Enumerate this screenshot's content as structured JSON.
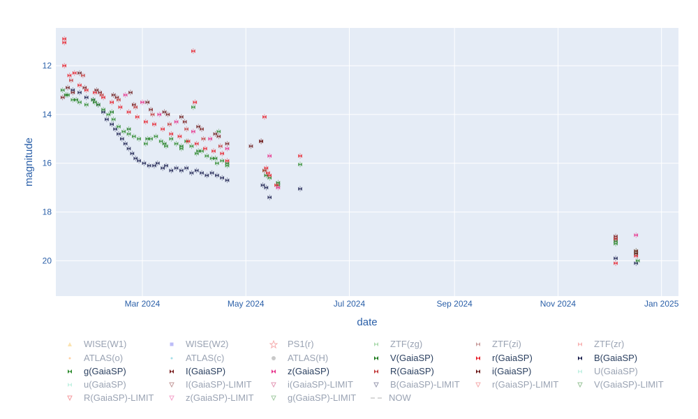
{
  "chart_data": {
    "type": "scatter",
    "xlabel": "date",
    "ylabel": "magnitude",
    "y_reversed": true,
    "xlim": [
      "2024-01-10",
      "2025-01-11"
    ],
    "ylim": [
      21.45,
      10.45
    ],
    "x_ticks": [
      {
        "date": "2024-03-01",
        "label": "Mar 2024"
      },
      {
        "date": "2024-05-01",
        "label": "May 2024"
      },
      {
        "date": "2024-07-01",
        "label": "Jul 2024"
      },
      {
        "date": "2024-09-01",
        "label": "Sep 2024"
      },
      {
        "date": "2024-11-01",
        "label": "Nov 2024"
      },
      {
        "date": "2025-01-01",
        "label": "Jan 2025"
      }
    ],
    "y_ticks": [
      12,
      14,
      16,
      18,
      20
    ],
    "grid": true,
    "background": "#e5ecf6",
    "legend_position": "bottom",
    "legend": [
      {
        "name": "WISE(W1)",
        "color": "#f6c04f",
        "symbol": "triangle-up",
        "faded": true
      },
      {
        "name": "WISE(W2)",
        "color": "#6a6af0",
        "symbol": "square",
        "faded": true
      },
      {
        "name": "PS1(r)",
        "color": "#e8474b",
        "symbol": "star-open",
        "faded": true
      },
      {
        "name": "ZTF(zg)",
        "color": "#4caf50",
        "symbol": "x-thin",
        "faded": true
      },
      {
        "name": "ZTF(zi)",
        "color": "#8b2e2e",
        "symbol": "x-thin",
        "faded": true
      },
      {
        "name": "ZTF(zr)",
        "color": "#f05a5a",
        "symbol": "x-thin",
        "faded": true
      },
      {
        "name": "ATLAS(o)",
        "color": "#ff9933",
        "symbol": "dot",
        "faded": true
      },
      {
        "name": "ATLAS(c)",
        "color": "#33b5cc",
        "symbol": "dot",
        "faded": true
      },
      {
        "name": "ATLAS(H)",
        "color": "#888888",
        "symbol": "circle",
        "faded": true
      },
      {
        "name": "V(GaiaSP)",
        "color": "#1b7a1b",
        "symbol": "bowtie",
        "faded": false
      },
      {
        "name": "r(GaiaSP)",
        "color": "#e8202a",
        "symbol": "bowtie",
        "faded": false
      },
      {
        "name": "B(GaiaSP)",
        "color": "#1a1f4d",
        "symbol": "bowtie",
        "faded": false
      },
      {
        "name": "g(GaiaSP)",
        "color": "#2e8b2e",
        "symbol": "bowtie",
        "faded": false
      },
      {
        "name": "I(GaiaSP)",
        "color": "#7a1f1f",
        "symbol": "bowtie",
        "faded": false
      },
      {
        "name": "z(GaiaSP)",
        "color": "#e6308a",
        "symbol": "bowtie",
        "faded": false
      },
      {
        "name": "R(GaiaSP)",
        "color": "#c23a3a",
        "symbol": "bowtie",
        "faded": false
      },
      {
        "name": "i(GaiaSP)",
        "color": "#6b1a1a",
        "symbol": "bowtie",
        "faded": false
      },
      {
        "name": "U(GaiaSP)",
        "color": "#7de0c0",
        "symbol": "bowtie",
        "faded": true
      },
      {
        "name": "u(GaiaSP)",
        "color": "#7de0c0",
        "symbol": "bowtie",
        "faded": true
      },
      {
        "name": "I(GaiaSP)-LIMIT",
        "color": "#7a1f1f",
        "symbol": "triangle-down-open",
        "faded": true
      },
      {
        "name": "i(GaiaSP)-LIMIT",
        "color": "#c2185b",
        "symbol": "triangle-down-open",
        "faded": true
      },
      {
        "name": "B(GaiaSP)-LIMIT",
        "color": "#1a1f4d",
        "symbol": "triangle-down-open",
        "faded": true
      },
      {
        "name": "r(GaiaSP)-LIMIT",
        "color": "#e8474b",
        "symbol": "triangle-down-open",
        "faded": true
      },
      {
        "name": "V(GaiaSP)-LIMIT",
        "color": "#1b7a1b",
        "symbol": "triangle-down-open",
        "faded": true
      },
      {
        "name": "R(GaiaSP)-LIMIT",
        "color": "#e8202a",
        "symbol": "triangle-down-open",
        "faded": true
      },
      {
        "name": "z(GaiaSP)-LIMIT",
        "color": "#e6308a",
        "symbol": "triangle-down-open",
        "faded": true
      },
      {
        "name": "g(GaiaSP)-LIMIT",
        "color": "#2e8b2e",
        "symbol": "triangle-down-open",
        "faded": true
      },
      {
        "name": "NOW",
        "color": "#555555",
        "symbol": "dash-line",
        "faded": true
      }
    ],
    "series": [
      {
        "name": "B(GaiaSP)",
        "color": "#1a1f4d",
        "points": [
          [
            "2024-01-20",
            13.0
          ],
          [
            "2024-01-24",
            13.1
          ],
          [
            "2024-01-28",
            13.3
          ],
          [
            "2024-02-01",
            13.4
          ],
          [
            "2024-02-04",
            13.6
          ],
          [
            "2024-02-07",
            13.9
          ],
          [
            "2024-02-09",
            14.2
          ],
          [
            "2024-02-12",
            14.4
          ],
          [
            "2024-02-14",
            14.6
          ],
          [
            "2024-02-16",
            14.8
          ],
          [
            "2024-02-18",
            15.0
          ],
          [
            "2024-02-20",
            15.2
          ],
          [
            "2024-02-22",
            15.4
          ],
          [
            "2024-02-24",
            15.6
          ],
          [
            "2024-02-26",
            15.8
          ],
          [
            "2024-02-28",
            15.9
          ],
          [
            "2024-03-02",
            16.0
          ],
          [
            "2024-03-05",
            16.1
          ],
          [
            "2024-03-08",
            16.1
          ],
          [
            "2024-03-10",
            16.0
          ],
          [
            "2024-03-13",
            16.2
          ],
          [
            "2024-03-15",
            16.1
          ],
          [
            "2024-03-18",
            16.3
          ],
          [
            "2024-03-21",
            16.2
          ],
          [
            "2024-03-24",
            16.3
          ],
          [
            "2024-03-27",
            16.2
          ],
          [
            "2024-03-30",
            16.4
          ],
          [
            "2024-04-02",
            16.3
          ],
          [
            "2024-04-05",
            16.4
          ],
          [
            "2024-04-08",
            16.5
          ],
          [
            "2024-04-11",
            16.4
          ],
          [
            "2024-04-14",
            16.5
          ],
          [
            "2024-04-17",
            16.6
          ],
          [
            "2024-04-20",
            16.7
          ],
          [
            "2024-05-11",
            16.9
          ],
          [
            "2024-05-13",
            17.0
          ],
          [
            "2024-05-15",
            17.4
          ],
          [
            "2024-06-02",
            17.05
          ],
          [
            "2024-12-05",
            19.9
          ],
          [
            "2024-12-17",
            20.1
          ]
        ]
      },
      {
        "name": "g(GaiaSP)",
        "color": "#2e8b2e",
        "points": [
          [
            "2024-01-14",
            13.0
          ],
          [
            "2024-01-17",
            13.2
          ],
          [
            "2024-01-20",
            13.4
          ],
          [
            "2024-01-24",
            13.5
          ],
          [
            "2024-01-28",
            13.6
          ],
          [
            "2024-02-01",
            13.4
          ],
          [
            "2024-02-04",
            13.6
          ],
          [
            "2024-02-07",
            13.8
          ],
          [
            "2024-02-10",
            14.0
          ],
          [
            "2024-02-13",
            14.2
          ],
          [
            "2024-02-16",
            14.5
          ],
          [
            "2024-02-19",
            14.7
          ],
          [
            "2024-02-22",
            14.8
          ],
          [
            "2024-02-25",
            14.9
          ],
          [
            "2024-02-28",
            15.0
          ],
          [
            "2024-03-03",
            15.2
          ],
          [
            "2024-03-06",
            15.0
          ],
          [
            "2024-03-09",
            14.9
          ],
          [
            "2024-03-12",
            15.1
          ],
          [
            "2024-03-15",
            15.3
          ],
          [
            "2024-03-18",
            15.0
          ],
          [
            "2024-03-21",
            15.2
          ],
          [
            "2024-03-24",
            15.4
          ],
          [
            "2024-03-27",
            15.1
          ],
          [
            "2024-03-30",
            15.3
          ],
          [
            "2024-04-02",
            15.6
          ],
          [
            "2024-04-05",
            15.5
          ],
          [
            "2024-04-08",
            15.7
          ],
          [
            "2024-04-11",
            15.8
          ],
          [
            "2024-04-14",
            16.0
          ],
          [
            "2024-04-17",
            15.9
          ],
          [
            "2024-04-20",
            16.1
          ],
          [
            "2024-03-31",
            13.7
          ],
          [
            "2024-04-15",
            14.7
          ],
          [
            "2024-05-12",
            16.3
          ],
          [
            "2024-05-15",
            16.6
          ],
          [
            "2024-05-20",
            16.9
          ],
          [
            "2024-06-02",
            16.05
          ],
          [
            "2024-12-05",
            19.3
          ],
          [
            "2024-12-17",
            19.6
          ],
          [
            "2024-12-18",
            20.0
          ]
        ]
      },
      {
        "name": "V(GaiaSP)",
        "color": "#1b7a1b",
        "points": [
          [
            "2024-01-16",
            13.2
          ],
          [
            "2024-01-22",
            13.4
          ],
          [
            "2024-02-02",
            13.5
          ],
          [
            "2024-02-12",
            13.9
          ],
          [
            "2024-02-22",
            14.6
          ],
          [
            "2024-03-04",
            15.0
          ],
          [
            "2024-03-14",
            15.2
          ],
          [
            "2024-03-24",
            15.3
          ],
          [
            "2024-04-03",
            15.5
          ],
          [
            "2024-04-13",
            15.8
          ],
          [
            "2024-04-20",
            16.0
          ],
          [
            "2024-05-13",
            16.5
          ],
          [
            "2024-05-20",
            16.8
          ],
          [
            "2024-12-05",
            19.2
          ],
          [
            "2024-12-17",
            19.7
          ]
        ]
      },
      {
        "name": "r(GaiaSP)",
        "color": "#e8202a",
        "points": [
          [
            "2024-01-15",
            10.9
          ],
          [
            "2024-01-15",
            11.05
          ],
          [
            "2024-01-15",
            12.0
          ],
          [
            "2024-01-18",
            12.4
          ],
          [
            "2024-01-21",
            12.3
          ],
          [
            "2024-01-24",
            12.8
          ],
          [
            "2024-01-28",
            13.0
          ],
          [
            "2024-02-02",
            13.1
          ],
          [
            "2024-02-07",
            13.3
          ],
          [
            "2024-02-12",
            13.5
          ],
          [
            "2024-02-17",
            13.7
          ],
          [
            "2024-02-22",
            13.9
          ],
          [
            "2024-02-27",
            14.1
          ],
          [
            "2024-03-03",
            14.3
          ],
          [
            "2024-03-08",
            14.4
          ],
          [
            "2024-03-13",
            14.6
          ],
          [
            "2024-03-18",
            14.8
          ],
          [
            "2024-03-23",
            14.9
          ],
          [
            "2024-03-28",
            15.1
          ],
          [
            "2024-04-02",
            15.2
          ],
          [
            "2024-04-07",
            15.4
          ],
          [
            "2024-04-12",
            15.5
          ],
          [
            "2024-04-17",
            15.6
          ],
          [
            "2024-04-20",
            15.9
          ],
          [
            "2024-03-31",
            11.4
          ],
          [
            "2024-04-01",
            13.5
          ],
          [
            "2024-05-12",
            14.1
          ],
          [
            "2024-05-13",
            16.2
          ],
          [
            "2024-05-14",
            16.4
          ],
          [
            "2024-05-15",
            16.5
          ],
          [
            "2024-05-19",
            16.9
          ],
          [
            "2024-06-02",
            15.7
          ],
          [
            "2024-12-05",
            20.1
          ],
          [
            "2024-12-17",
            19.8
          ]
        ]
      },
      {
        "name": "I(GaiaSP)",
        "color": "#7a1f1f",
        "points": [
          [
            "2024-01-14",
            13.3
          ],
          [
            "2024-01-20",
            13.1
          ],
          [
            "2024-01-27",
            12.9
          ],
          [
            "2024-02-05",
            13.1
          ],
          [
            "2024-02-15",
            13.3
          ],
          [
            "2024-02-25",
            13.6
          ],
          [
            "2024-03-06",
            13.8
          ],
          [
            "2024-03-16",
            14.0
          ],
          [
            "2024-03-26",
            14.3
          ],
          [
            "2024-04-05",
            14.6
          ],
          [
            "2024-04-15",
            14.9
          ],
          [
            "2024-04-20",
            15.2
          ],
          [
            "2024-05-10",
            15.1
          ],
          [
            "2024-12-05",
            19.0
          ],
          [
            "2024-12-17",
            19.6
          ]
        ]
      },
      {
        "name": "i(GaiaSP)",
        "color": "#6b1a1a",
        "points": [
          [
            "2024-01-17",
            12.9
          ],
          [
            "2024-01-24",
            12.3
          ],
          [
            "2024-02-03",
            13.0
          ],
          [
            "2024-02-13",
            13.2
          ],
          [
            "2024-02-23",
            13.1
          ],
          [
            "2024-03-04",
            13.5
          ],
          [
            "2024-03-14",
            13.9
          ],
          [
            "2024-03-24",
            14.1
          ],
          [
            "2024-04-03",
            14.5
          ],
          [
            "2024-04-13",
            14.8
          ],
          [
            "2024-05-04",
            15.3
          ],
          [
            "2024-05-10",
            15.1
          ],
          [
            "2024-12-05",
            19.1
          ],
          [
            "2024-12-17",
            19.7
          ]
        ]
      },
      {
        "name": "R(GaiaSP)",
        "color": "#c23a3a",
        "points": [
          [
            "2024-01-19",
            12.6
          ],
          [
            "2024-01-26",
            12.4
          ],
          [
            "2024-02-06",
            13.2
          ],
          [
            "2024-02-16",
            13.4
          ],
          [
            "2024-02-26",
            13.7
          ],
          [
            "2024-03-07",
            14.0
          ],
          [
            "2024-03-17",
            14.4
          ],
          [
            "2024-03-27",
            14.6
          ],
          [
            "2024-04-06",
            15.0
          ],
          [
            "2024-04-16",
            15.3
          ],
          [
            "2024-05-12",
            16.3
          ],
          [
            "2024-12-05",
            19.1
          ]
        ]
      },
      {
        "name": "z(GaiaSP)",
        "color": "#e6308a",
        "points": [
          [
            "2024-02-20",
            13.2
          ],
          [
            "2024-03-01",
            13.5
          ],
          [
            "2024-03-11",
            14.0
          ],
          [
            "2024-03-21",
            14.3
          ],
          [
            "2024-03-31",
            14.7
          ],
          [
            "2024-04-10",
            15.0
          ],
          [
            "2024-04-20",
            15.4
          ],
          [
            "2024-05-15",
            15.7
          ],
          [
            "2024-05-20",
            17.0
          ],
          [
            "2024-12-17",
            18.95
          ]
        ]
      }
    ],
    "now_line": false
  }
}
